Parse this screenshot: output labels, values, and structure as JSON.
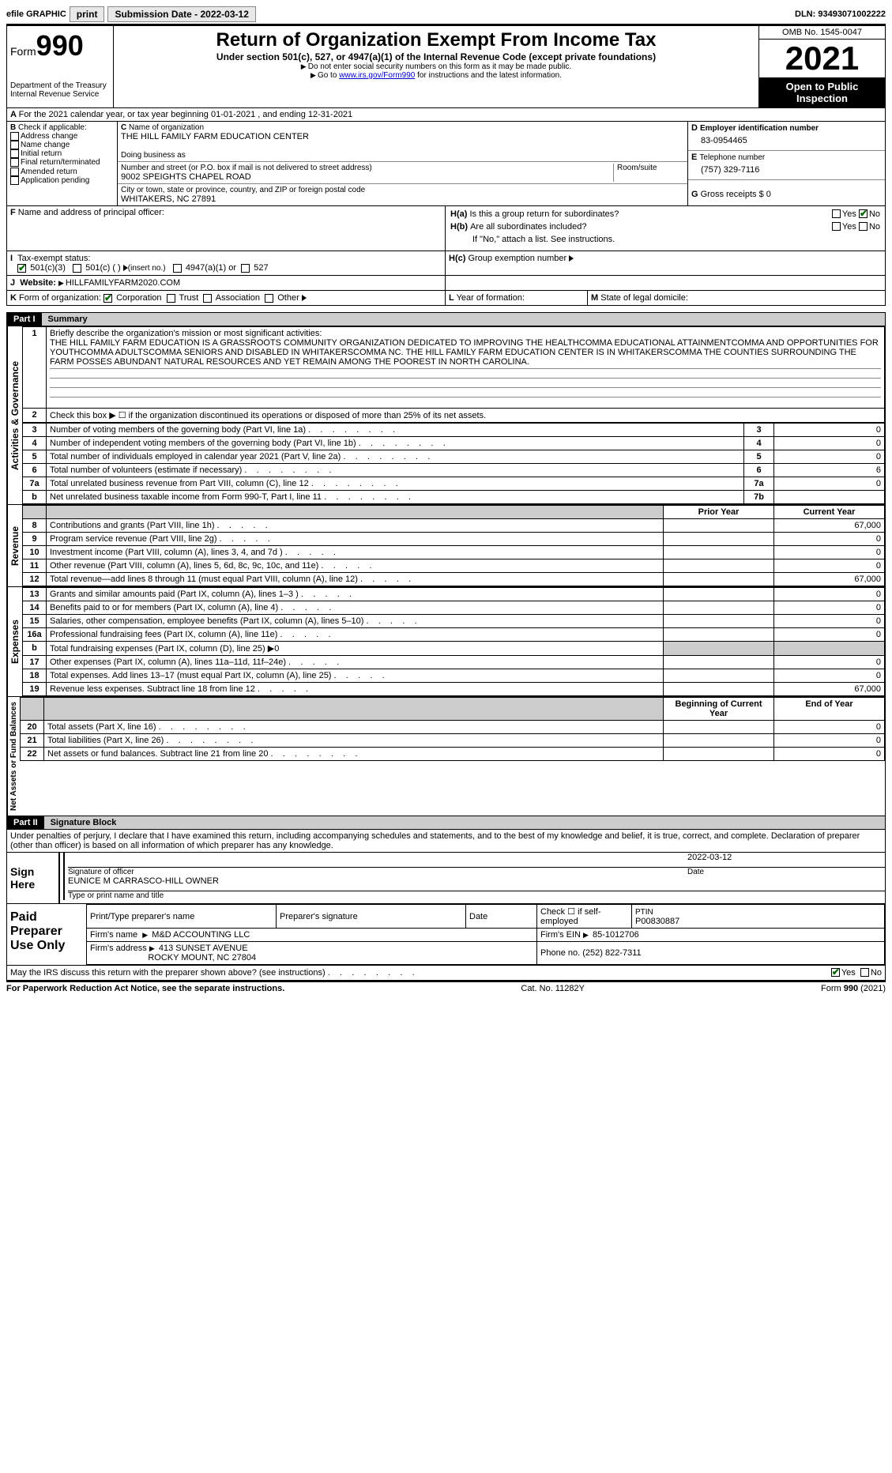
{
  "topbar": {
    "efile": "efile GRAPHIC",
    "print": "print",
    "subdate_label": "Submission Date - 2022-03-12",
    "dln_label": "DLN: 93493071002222"
  },
  "header": {
    "form_word": "Form",
    "form_num": "990",
    "dept1": "Department of the Treasury",
    "dept2": "Internal Revenue Service",
    "title": "Return of Organization Exempt From Income Tax",
    "sub1": "Under section 501(c), 527, or 4947(a)(1) of the Internal Revenue Code (except private foundations)",
    "sub2": "Do not enter social security numbers on this form as it may be made public.",
    "sub3_a": "Go to ",
    "sub3_link": "www.irs.gov/Form990",
    "sub3_b": " for instructions and the latest information.",
    "omb": "OMB No. 1545-0047",
    "year": "2021",
    "open": "Open to Public Inspection"
  },
  "a": {
    "text": "For the 2021 calendar year, or tax year beginning 01-01-2021    , and ending 12-31-2021"
  },
  "b": {
    "label": "Check if applicable:",
    "items": [
      "Address change",
      "Name change",
      "Initial return",
      "Final return/terminated",
      "Amended return",
      "Application pending"
    ]
  },
  "c": {
    "name_label": "Name of organization",
    "name": "THE HILL FAMILY FARM EDUCATION CENTER",
    "dba_label": "Doing business as",
    "addr_label": "Number and street (or P.O. box if mail is not delivered to street address)",
    "room_label": "Room/suite",
    "addr": "9002 SPEIGHTS CHAPEL ROAD",
    "city_label": "City or town, state or province, country, and ZIP or foreign postal code",
    "city": "WHITAKERS, NC  27891"
  },
  "d": {
    "label": "Employer identification number",
    "value": "83-0954465"
  },
  "e": {
    "label": "Telephone number",
    "value": "(757) 329-7116"
  },
  "g": {
    "label": "Gross receipts $ 0"
  },
  "f": {
    "label": "Name and address of principal officer:"
  },
  "h": {
    "a": "Is this a group return for subordinates?",
    "b": "Are all subordinates included?",
    "note": "If \"No,\" attach a list. See instructions.",
    "c": "Group exemption number",
    "yes": "Yes",
    "no": "No"
  },
  "i": {
    "label": "Tax-exempt status:",
    "opt1": "501(c)(3)",
    "opt2": "501(c) (  )",
    "ins": "(insert no.)",
    "opt3": "4947(a)(1) or",
    "opt4": "527"
  },
  "j": {
    "label": "Website:",
    "value": "HILLFAMILYFARM2020.COM"
  },
  "k": {
    "label": "Form of organization:",
    "corp": "Corporation",
    "trust": "Trust",
    "assoc": "Association",
    "other": "Other"
  },
  "l": {
    "label": "Year of formation:"
  },
  "m": {
    "label": "State of legal domicile:"
  },
  "parts": {
    "p1": "Part I",
    "p1t": "Summary",
    "p2": "Part II",
    "p2t": "Signature Block"
  },
  "sidebars": {
    "s1": "Activities & Governance",
    "s2": "Revenue",
    "s3": "Expenses",
    "s4": "Net Assets or Fund Balances"
  },
  "p1": {
    "l1": "Briefly describe the organization's mission or most significant activities:",
    "mission": "THE HILL FAMILY FARM EDUCATION IS A GRASSROOTS COMMUNITY ORGANIZATION DEDICATED TO IMPROVING THE HEALTHCOMMA EDUCATIONAL ATTAINMENTCOMMA AND OPPORTUNITIES FOR YOUTHCOMMA ADULTSCOMMA SENIORS AND DISABLED IN WHITAKERSCOMMA NC. THE HILL FAMILY FARM EDUCATION CENTER IS IN WHITAKERSCOMMA THE COUNTIES SURROUNDING THE FARM POSSES ABUNDANT NATURAL RESOURCES AND YET REMAIN AMONG THE POOREST IN NORTH CAROLINA.",
    "l2": "Check this box ▶ ☐ if the organization discontinued its operations or disposed of more than 25% of its net assets.",
    "rows_ag": [
      {
        "n": "3",
        "t": "Number of voting members of the governing body (Part VI, line 1a)",
        "lbl": "3",
        "v": "0"
      },
      {
        "n": "4",
        "t": "Number of independent voting members of the governing body (Part VI, line 1b)",
        "lbl": "4",
        "v": "0"
      },
      {
        "n": "5",
        "t": "Total number of individuals employed in calendar year 2021 (Part V, line 2a)",
        "lbl": "5",
        "v": "0"
      },
      {
        "n": "6",
        "t": "Total number of volunteers (estimate if necessary)",
        "lbl": "6",
        "v": "6"
      },
      {
        "n": "7a",
        "t": "Total unrelated business revenue from Part VIII, column (C), line 12",
        "lbl": "7a",
        "v": "0"
      },
      {
        "n": "b",
        "t": "Net unrelated business taxable income from Form 990-T, Part I, line 11",
        "lbl": "7b",
        "v": ""
      }
    ],
    "hdr_prior": "Prior Year",
    "hdr_curr": "Current Year",
    "rows_rev": [
      {
        "n": "8",
        "t": "Contributions and grants (Part VIII, line 1h)",
        "p": "",
        "c": "67,000"
      },
      {
        "n": "9",
        "t": "Program service revenue (Part VIII, line 2g)",
        "p": "",
        "c": "0"
      },
      {
        "n": "10",
        "t": "Investment income (Part VIII, column (A), lines 3, 4, and 7d )",
        "p": "",
        "c": "0"
      },
      {
        "n": "11",
        "t": "Other revenue (Part VIII, column (A), lines 5, 6d, 8c, 9c, 10c, and 11e)",
        "p": "",
        "c": "0"
      },
      {
        "n": "12",
        "t": "Total revenue—add lines 8 through 11 (must equal Part VIII, column (A), line 12)",
        "p": "",
        "c": "67,000"
      }
    ],
    "rows_exp": [
      {
        "n": "13",
        "t": "Grants and similar amounts paid (Part IX, column (A), lines 1–3 )",
        "p": "",
        "c": "0"
      },
      {
        "n": "14",
        "t": "Benefits paid to or for members (Part IX, column (A), line 4)",
        "p": "",
        "c": "0"
      },
      {
        "n": "15",
        "t": "Salaries, other compensation, employee benefits (Part IX, column (A), lines 5–10)",
        "p": "",
        "c": "0"
      },
      {
        "n": "16a",
        "t": "Professional fundraising fees (Part IX, column (A), line 11e)",
        "p": "",
        "c": "0"
      },
      {
        "n": "b",
        "t": "Total fundraising expenses (Part IX, column (D), line 25) ▶0",
        "p": "shade",
        "c": "shade"
      },
      {
        "n": "17",
        "t": "Other expenses (Part IX, column (A), lines 11a–11d, 11f–24e)",
        "p": "",
        "c": "0"
      },
      {
        "n": "18",
        "t": "Total expenses. Add lines 13–17 (must equal Part IX, column (A), line 25)",
        "p": "",
        "c": "0"
      },
      {
        "n": "19",
        "t": "Revenue less expenses. Subtract line 18 from line 12",
        "p": "",
        "c": "67,000"
      }
    ],
    "hdr_beg": "Beginning of Current Year",
    "hdr_end": "End of Year",
    "rows_na": [
      {
        "n": "20",
        "t": "Total assets (Part X, line 16)",
        "p": "",
        "c": "0"
      },
      {
        "n": "21",
        "t": "Total liabilities (Part X, line 26)",
        "p": "",
        "c": "0"
      },
      {
        "n": "22",
        "t": "Net assets or fund balances. Subtract line 21 from line 20",
        "p": "",
        "c": "0"
      }
    ]
  },
  "sig": {
    "decl": "Under penalties of perjury, I declare that I have examined this return, including accompanying schedules and statements, and to the best of my knowledge and belief, it is true, correct, and complete. Declaration of preparer (other than officer) is based on all information of which preparer has any knowledge.",
    "sign_here": "Sign Here",
    "sig_off": "Signature of officer",
    "date": "Date",
    "date_v": "2022-03-12",
    "name": "EUNICE M CARRASCO-HILL  OWNER",
    "name_lbl": "Type or print name and title",
    "paid": "Paid Preparer Use Only",
    "h1": "Print/Type preparer's name",
    "h2": "Preparer's signature",
    "h3": "Date",
    "h4": "Check ☐ if self-employed",
    "h5": "PTIN",
    "ptin": "P00830887",
    "firm_name_lbl": "Firm's name",
    "firm_name": "M&D ACCOUNTING LLC",
    "firm_ein_lbl": "Firm's EIN",
    "firm_ein": "85-1012706",
    "firm_addr_lbl": "Firm's address",
    "firm_addr1": "413 SUNSET AVENUE",
    "firm_addr2": "ROCKY MOUNT, NC  27804",
    "phone_lbl": "Phone no.",
    "phone": "(252) 822-7311",
    "may": "May the IRS discuss this return with the preparer shown above? (see instructions)"
  },
  "footer": {
    "l": "For Paperwork Reduction Act Notice, see the separate instructions.",
    "m": "Cat. No. 11282Y",
    "r": "Form 990 (2021)"
  }
}
